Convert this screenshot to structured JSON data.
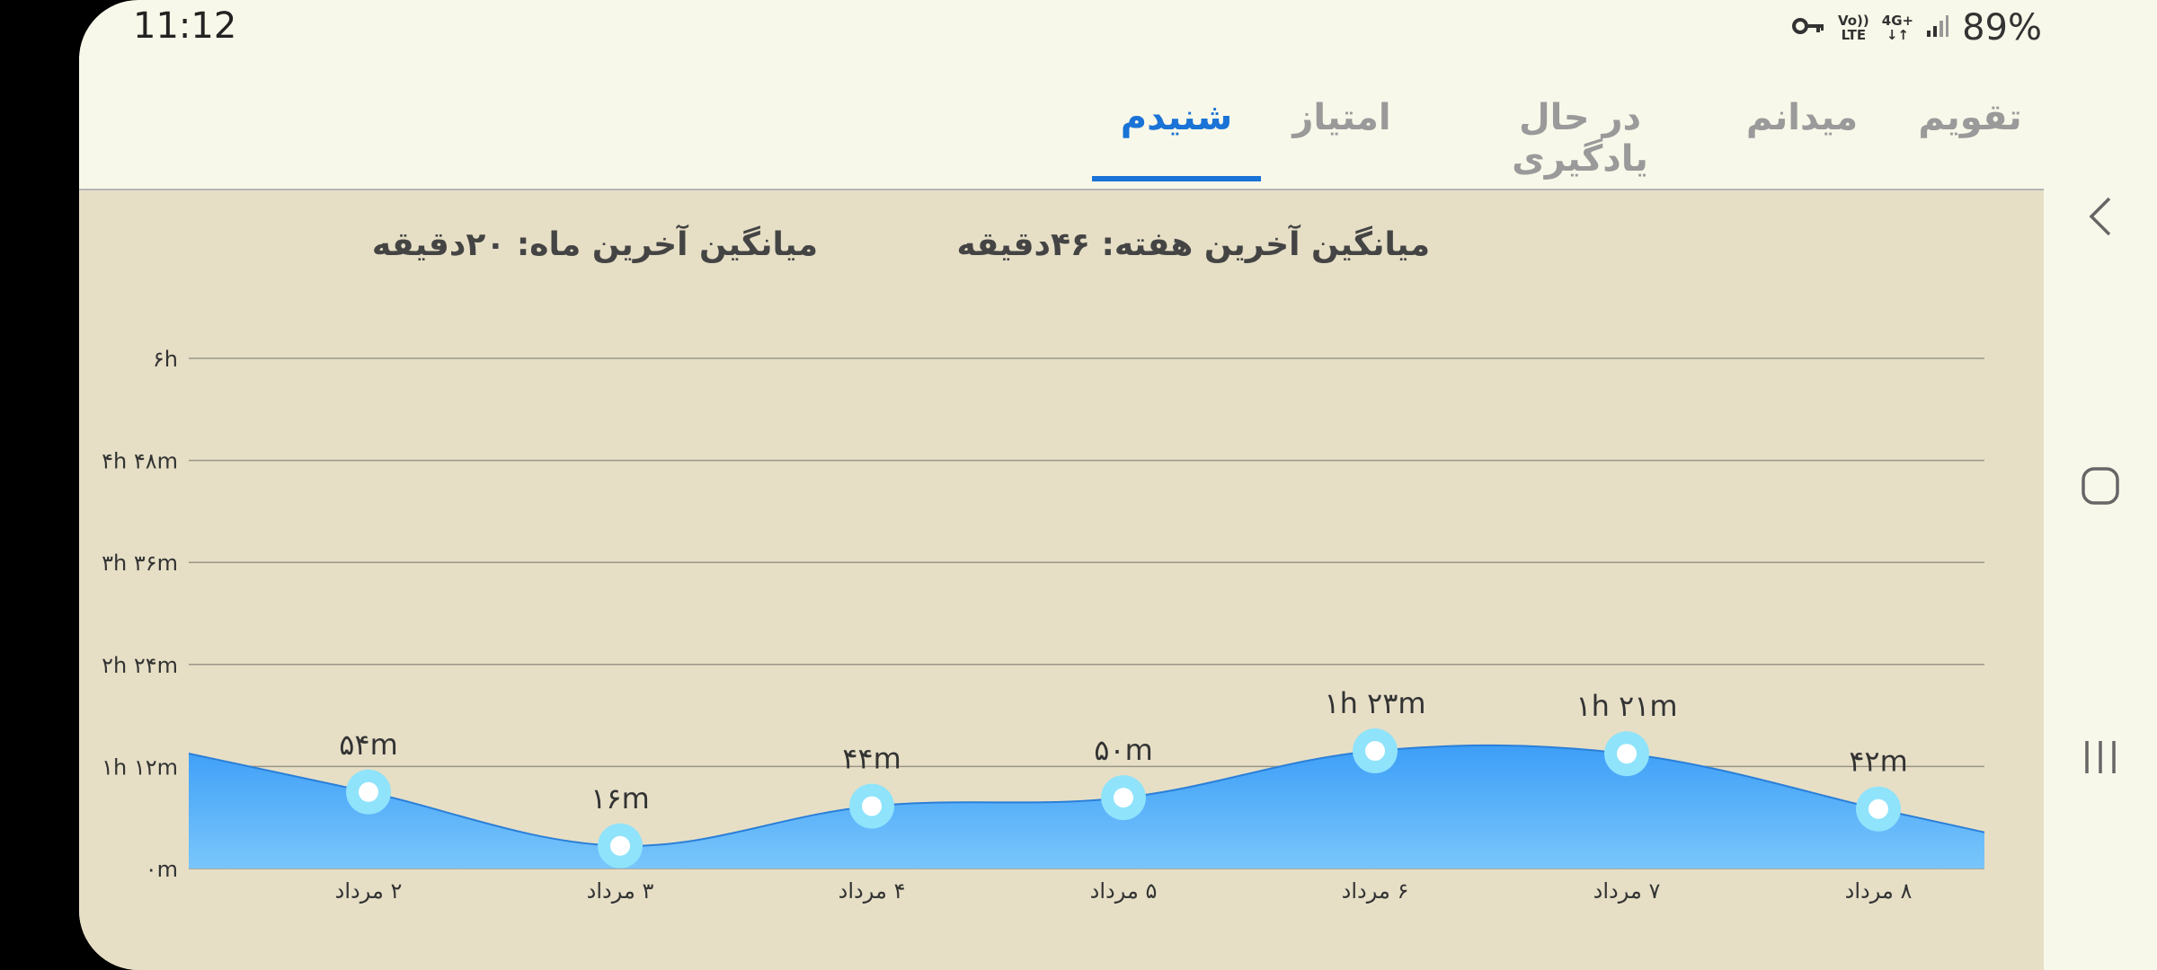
{
  "status_bar": {
    "time": "11:12",
    "battery": "89%",
    "network_top": "Vo))",
    "network_bottom": "LTE",
    "data_top": "4G+",
    "icons": [
      "key-icon",
      "volte-icon",
      "data-arrows-icon",
      "signal-icon",
      "battery-icon"
    ]
  },
  "tabs": [
    {
      "label": "تقویم",
      "active": false
    },
    {
      "label": "میدانم",
      "active": false
    },
    {
      "label": "در حال یادگیری",
      "active": false
    },
    {
      "label": "امتیاز",
      "active": false
    },
    {
      "label": "شنیدم",
      "active": true
    }
  ],
  "averages": {
    "week": "میانگین آخرین هفته: ۴۶دقیقه",
    "month": "میانگین آخرین ماه: ۲۰دقیقه"
  },
  "colors": {
    "accent": "#1a73d6",
    "area_top": "#3d9ef7",
    "area_bottom": "#79c6fb",
    "point_ring": "#8fe3fb",
    "background": "#e6dfc6"
  },
  "chart_data": {
    "type": "area",
    "y_unit": "minutes",
    "ylim": [
      0,
      360
    ],
    "yticks": [
      0,
      72,
      144,
      216,
      288,
      360
    ],
    "ytick_labels": [
      "۰m",
      "۱h ۱۲m",
      "۲h ۲۴m",
      "۳h ۳۶m",
      "۴h ۴۸m",
      "۶h"
    ],
    "categories": [
      "۲ مرداد",
      "۳ مرداد",
      "۴ مرداد",
      "۵ مرداد",
      "۶ مرداد",
      "۷ مرداد",
      "۸ مرداد"
    ],
    "values": [
      54,
      16,
      44,
      50,
      83,
      81,
      42
    ],
    "value_labels": [
      "۵۴m",
      "۱۶m",
      "۴۴m",
      "۵۰m",
      "۱h ۲۳m",
      "۱h ۲۱m",
      "۴۲m"
    ],
    "grid": true
  },
  "nav": {
    "icons": [
      "back-icon",
      "home-icon",
      "recents-icon"
    ]
  }
}
